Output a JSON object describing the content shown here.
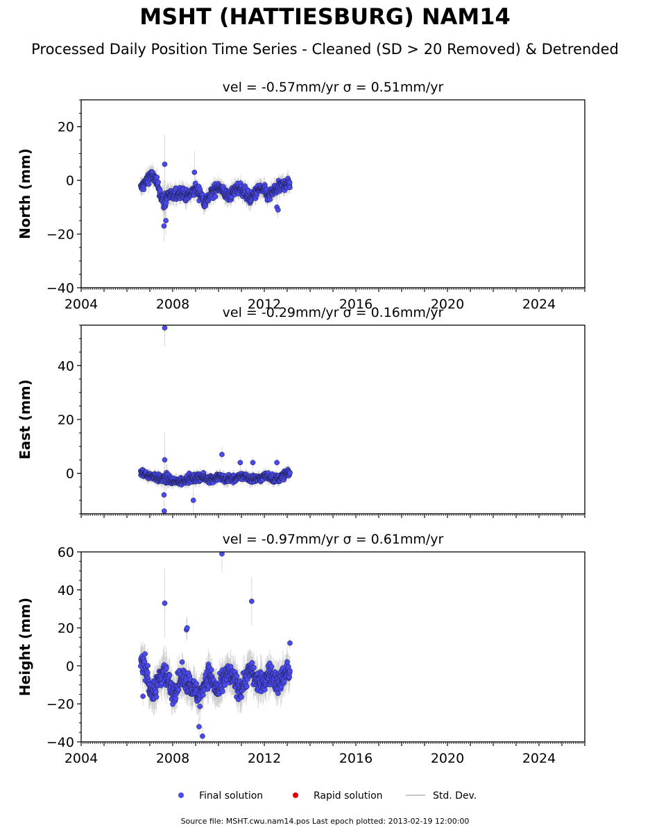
{
  "title": "MSHT (HATTIESBURG) NAM14",
  "subtitle": "Processed Daily Position Time Series - Cleaned (SD > 20 Removed) & Detrended",
  "footer": "Source file: MSHT.cwu.nam14.pos  Last epoch plotted: 2013-02-19 12:00:00",
  "colors": {
    "final": "#4a4aee",
    "rapid": "#e00000",
    "stddev": "#c8c8c8",
    "marker_edge": "#1a1a40"
  },
  "legend": [
    {
      "label": "Final solution",
      "kind": "final"
    },
    {
      "label": "Rapid solution",
      "kind": "rapid"
    },
    {
      "label": "Std. Dev.",
      "kind": "stddev"
    }
  ],
  "chart_data": [
    {
      "type": "scatter",
      "title": "vel = -0.57mm/yr   σ = 0.51mm/yr",
      "ylabel": "North (mm)",
      "xlim": [
        2004,
        2026
      ],
      "ylim": [
        -40,
        30
      ],
      "yticks": [
        -40,
        -20,
        0,
        20
      ],
      "ytick_labels": [
        "−40",
        "−20",
        "0",
        "20"
      ],
      "xticks": [
        2004,
        2008,
        2012,
        2016,
        2020,
        2024
      ],
      "xtick_labels": [
        "2004",
        "2008",
        "2012",
        "2016",
        "2020",
        "2024"
      ],
      "series": [
        {
          "kind": "final",
          "x": [
            2006.6,
            2006.8,
            2007.0,
            2007.2,
            2007.4,
            2007.55,
            2007.7,
            2007.8,
            2008.0,
            2008.2,
            2008.4,
            2008.6,
            2008.8,
            2009.0,
            2009.2,
            2009.4,
            2009.6,
            2009.8,
            2010.0,
            2010.2,
            2010.4,
            2010.6,
            2010.8,
            2011.0,
            2011.2,
            2011.4,
            2011.6,
            2011.8,
            2012.0,
            2012.2,
            2012.4,
            2012.6,
            2012.8,
            2013.0,
            2013.13
          ],
          "y": [
            -3,
            -1,
            2,
            1,
            -3,
            -8,
            -7,
            -5,
            -6,
            -5,
            -4,
            -6,
            -5,
            -3,
            -5,
            -8,
            -6,
            -4,
            -2,
            -4,
            -6,
            -5,
            -3,
            -3,
            -5,
            -7,
            -5,
            -3,
            -4,
            -6,
            -4,
            -3,
            -2,
            -1,
            -1
          ],
          "sd": [
            3,
            3,
            3,
            3,
            3,
            5,
            4,
            3,
            3,
            3,
            3,
            3,
            3,
            3,
            3,
            3,
            3,
            3,
            3,
            3,
            3,
            3,
            3,
            3,
            3,
            3,
            3,
            3,
            3,
            3,
            3,
            3,
            3,
            3,
            3
          ]
        }
      ],
      "outliers": {
        "x": [
          2007.65,
          2007.62,
          2007.7,
          2008.95,
          2012.55,
          2012.6
        ],
        "y": [
          6,
          -17,
          -15,
          3,
          -10,
          -11
        ],
        "sd": [
          11,
          6,
          5,
          8,
          3,
          3
        ]
      }
    },
    {
      "type": "scatter",
      "title": "vel = -0.29mm/yr   σ = 0.16mm/yr",
      "ylabel": "East (mm)",
      "xlim": [
        2004,
        2026
      ],
      "ylim": [
        -15,
        55
      ],
      "yticks": [
        0,
        20,
        40
      ],
      "ytick_labels": [
        "0",
        "20",
        "40"
      ],
      "xticks": [
        2004,
        2008,
        2012,
        2016,
        2020,
        2024
      ],
      "xtick_labels": [
        "",
        "",
        "",
        "",
        "",
        ""
      ],
      "series": [
        {
          "kind": "final",
          "x": [
            2006.6,
            2006.8,
            2007.0,
            2007.2,
            2007.4,
            2007.6,
            2007.8,
            2008.0,
            2008.2,
            2008.4,
            2008.6,
            2008.8,
            2009.0,
            2009.2,
            2009.4,
            2009.6,
            2009.8,
            2010.0,
            2010.2,
            2010.4,
            2010.6,
            2010.8,
            2011.0,
            2011.2,
            2011.4,
            2011.6,
            2011.8,
            2012.0,
            2012.2,
            2012.4,
            2012.6,
            2012.8,
            2013.0,
            2013.13
          ],
          "y": [
            0,
            0,
            -1,
            -1,
            -2,
            -2,
            -2,
            -3,
            -3,
            -3,
            -2,
            -2,
            -2,
            -1,
            -2,
            -2,
            -2,
            -1,
            -2,
            -2,
            -2,
            -2,
            -1,
            -1,
            -2,
            -2,
            -2,
            -1,
            -1,
            -2,
            -2,
            -1,
            0,
            0
          ],
          "sd": [
            2,
            2,
            2,
            2,
            2,
            3,
            2,
            2,
            2,
            2,
            2,
            2,
            2,
            2,
            2,
            2,
            2,
            2,
            2,
            2,
            2,
            2,
            2,
            2,
            2,
            2,
            2,
            2,
            2,
            2,
            2,
            2,
            2,
            2
          ]
        }
      ],
      "outliers": {
        "x": [
          2007.65,
          2007.65,
          2007.62,
          2007.63,
          2008.9,
          2010.15,
          2010.95,
          2011.5,
          2012.55
        ],
        "y": [
          54,
          5,
          -8,
          -14,
          -10,
          7,
          4,
          4,
          4
        ],
        "sd": [
          7,
          10,
          4,
          3,
          6,
          3,
          2,
          2,
          2
        ]
      }
    },
    {
      "type": "scatter",
      "title": "vel = -0.97mm/yr   σ = 0.61mm/yr",
      "ylabel": "Height (mm)",
      "xlim": [
        2004,
        2026
      ],
      "ylim": [
        -40,
        60
      ],
      "yticks": [
        -40,
        -20,
        0,
        20,
        40,
        60
      ],
      "ytick_labels": [
        "−40",
        "−20",
        "0",
        "20",
        "40",
        "60"
      ],
      "xticks": [
        2004,
        2008,
        2012,
        2016,
        2020,
        2024
      ],
      "xtick_labels": [
        "2004",
        "2008",
        "2012",
        "2016",
        "2020",
        "2024"
      ],
      "series": [
        {
          "kind": "final",
          "x": [
            2006.6,
            2006.8,
            2007.0,
            2007.2,
            2007.4,
            2007.6,
            2007.8,
            2008.0,
            2008.2,
            2008.4,
            2008.6,
            2008.8,
            2009.0,
            2009.2,
            2009.4,
            2009.6,
            2009.8,
            2010.0,
            2010.2,
            2010.4,
            2010.6,
            2010.8,
            2011.0,
            2011.2,
            2011.4,
            2011.6,
            2011.8,
            2012.0,
            2012.2,
            2012.4,
            2012.6,
            2012.8,
            2013.0,
            2013.13
          ],
          "y": [
            3,
            0,
            -12,
            -15,
            -6,
            -2,
            -8,
            -14,
            -10,
            -6,
            -8,
            -10,
            -14,
            -16,
            -8,
            -4,
            -10,
            -14,
            -8,
            -4,
            -6,
            -10,
            -12,
            -6,
            -2,
            -6,
            -10,
            -8,
            -4,
            -6,
            -10,
            -6,
            -2,
            -5
          ],
          "sd": [
            8,
            8,
            8,
            8,
            8,
            9,
            8,
            8,
            8,
            8,
            8,
            8,
            8,
            8,
            8,
            8,
            8,
            8,
            8,
            8,
            8,
            8,
            8,
            8,
            8,
            8,
            8,
            8,
            8,
            8,
            8,
            8,
            8,
            8
          ]
        }
      ],
      "outliers": {
        "x": [
          2007.65,
          2008.6,
          2008.63,
          2010.15,
          2011.45,
          2013.12,
          2009.3,
          2009.15,
          2006.7
        ],
        "y": [
          33,
          19,
          20,
          59,
          34,
          12,
          -37,
          -32,
          -16
        ],
        "sd": [
          18,
          6,
          6,
          10,
          13,
          3,
          5,
          5,
          5
        ]
      }
    }
  ]
}
